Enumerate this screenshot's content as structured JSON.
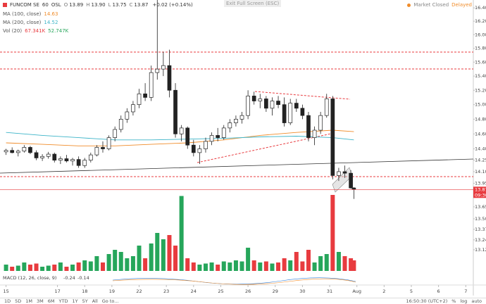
{
  "header": {
    "symbol": "FUNCOM SE",
    "interval": "60",
    "exchange": "OSL",
    "ohlc": [
      [
        "O",
        "13.89"
      ],
      [
        "H",
        "13.90"
      ],
      [
        "L",
        "13.75"
      ],
      [
        "C",
        "13.87"
      ]
    ],
    "change": "+0.02 (+0.14%)"
  },
  "status": {
    "exit": "Exit Full Screen (ESC)",
    "market": "Market Closed",
    "delayed": "Delayed"
  },
  "toolbar": {
    "ranges": [
      "1D",
      "5D",
      "1M",
      "3M",
      "6M",
      "YTD",
      "1Y",
      "5Y",
      "All"
    ],
    "goto": "Go to...",
    "clock": "16:50:30 (UTC+2)",
    "options": [
      "%",
      "log",
      "auto"
    ]
  },
  "chart_data": {
    "type": "candlestick",
    "log": true,
    "grid": false,
    "up_color": "#26a65b",
    "down_color": "#e83b3f",
    "x": [
      0,
      2,
      4,
      6,
      8,
      10,
      12,
      14,
      16,
      18,
      20,
      22,
      24,
      26,
      28,
      30,
      32,
      34,
      36,
      38,
      40,
      42,
      44,
      46,
      48,
      50,
      52,
      54,
      56,
      58,
      60,
      62,
      64,
      66,
      68,
      70,
      72,
      74,
      76,
      78,
      80,
      82,
      84,
      86,
      88,
      90,
      92,
      94,
      96,
      98,
      100,
      102,
      104,
      106,
      108,
      110,
      112,
      114,
      115
    ],
    "open": [
      14.36,
      14.38,
      14.35,
      14.37,
      14.42,
      14.35,
      14.28,
      14.3,
      14.33,
      14.25,
      14.27,
      14.24,
      14.26,
      14.18,
      14.25,
      14.32,
      14.42,
      14.4,
      14.55,
      14.66,
      14.8,
      14.9,
      15.0,
      15.15,
      15.1,
      15.45,
      15.5,
      15.55,
      15.2,
      14.6,
      14.68,
      14.45,
      14.35,
      14.4,
      14.5,
      14.58,
      14.55,
      14.68,
      14.75,
      14.8,
      14.85,
      15.12,
      15.05,
      15.08,
      14.95,
      15.05,
      15.0,
      14.75,
      15.02,
      14.95,
      14.85,
      14.55,
      14.65,
      14.85,
      15.08,
      14.05,
      14.1,
      14.08,
      13.89
    ],
    "high": [
      14.4,
      14.42,
      14.39,
      14.45,
      14.44,
      14.38,
      14.33,
      14.36,
      14.35,
      14.3,
      14.32,
      14.28,
      14.3,
      14.28,
      14.35,
      14.45,
      14.5,
      14.58,
      14.7,
      14.85,
      14.95,
      15.05,
      15.22,
      15.3,
      15.55,
      16.52,
      15.75,
      15.78,
      15.3,
      14.72,
      14.7,
      14.52,
      14.45,
      14.55,
      14.62,
      14.68,
      14.72,
      14.8,
      14.85,
      14.9,
      15.2,
      15.18,
      15.15,
      15.12,
      15.1,
      15.12,
      15.1,
      15.08,
      15.08,
      15.0,
      14.9,
      14.7,
      14.9,
      15.15,
      15.12,
      14.15,
      14.18,
      14.12,
      13.9
    ],
    "low": [
      14.32,
      14.34,
      14.3,
      14.35,
      14.33,
      14.25,
      14.24,
      14.27,
      14.22,
      14.2,
      14.22,
      14.18,
      14.15,
      14.15,
      14.22,
      14.3,
      14.35,
      14.38,
      14.5,
      14.62,
      14.75,
      14.85,
      14.95,
      15.05,
      15.05,
      15.35,
      15.4,
      15.1,
      14.55,
      14.5,
      14.4,
      14.3,
      14.2,
      14.35,
      14.45,
      14.5,
      14.52,
      14.62,
      14.7,
      14.74,
      14.8,
      15.0,
      14.95,
      14.9,
      14.85,
      14.95,
      14.7,
      14.72,
      14.9,
      14.8,
      14.5,
      14.45,
      14.6,
      14.82,
      14.0,
      13.98,
      14.02,
      13.88,
      13.75
    ],
    "close": [
      14.38,
      14.35,
      14.37,
      14.42,
      14.35,
      14.28,
      14.3,
      14.33,
      14.25,
      14.27,
      14.24,
      14.26,
      14.18,
      14.25,
      14.32,
      14.42,
      14.4,
      14.55,
      14.66,
      14.8,
      14.9,
      15.0,
      15.15,
      15.1,
      15.45,
      15.5,
      15.55,
      15.2,
      14.6,
      14.68,
      14.45,
      14.35,
      14.4,
      14.5,
      14.58,
      14.55,
      14.68,
      14.75,
      14.8,
      14.85,
      15.12,
      15.05,
      15.08,
      14.95,
      15.05,
      15.0,
      14.75,
      15.02,
      14.95,
      14.85,
      14.55,
      14.65,
      14.85,
      15.08,
      14.05,
      14.1,
      14.08,
      13.89,
      13.87
    ],
    "volume": [
      30000,
      20000,
      25000,
      40000,
      30000,
      35000,
      20000,
      25000,
      30000,
      40000,
      20000,
      30000,
      40000,
      50000,
      45000,
      70000,
      40000,
      80000,
      100000,
      90000,
      60000,
      70000,
      120000,
      60000,
      130000,
      180000,
      150000,
      170000,
      120000,
      355000,
      60000,
      40000,
      30000,
      35000,
      40000,
      30000,
      45000,
      40000,
      50000,
      45000,
      110000,
      50000,
      40000,
      45000,
      35000,
      40000,
      60000,
      50000,
      90000,
      45000,
      100000,
      40000,
      70000,
      80000,
      360000,
      90000,
      70000,
      60000,
      50000
    ],
    "volume_name": "Vol (20)",
    "volume_legend": [
      "67.341K",
      "52.747K"
    ],
    "y2lim": [
      0,
      400000
    ],
    "series": [
      {
        "name": "MA (100, close)",
        "color": "#f08c2a",
        "last": "14.63",
        "x": [
          0,
          12,
          24,
          36,
          48,
          60,
          72,
          84,
          96,
          108,
          115
        ],
        "values": [
          14.48,
          14.46,
          14.44,
          14.44,
          14.46,
          14.48,
          14.52,
          14.58,
          14.62,
          14.65,
          14.63
        ]
      },
      {
        "name": "MA (200, close)",
        "color": "#3cb4c8",
        "last": "14.52",
        "x": [
          0,
          12,
          24,
          36,
          48,
          60,
          72,
          84,
          96,
          108,
          115
        ],
        "values": [
          14.62,
          14.58,
          14.55,
          14.52,
          14.52,
          14.53,
          14.54,
          14.56,
          14.57,
          14.55,
          14.52
        ]
      }
    ],
    "last_price": {
      "value": 13.87,
      "label": "13.87",
      "time": "09:30",
      "color": "#e83b3f"
    },
    "macd": {
      "name": "MACD (12, 26, close, 9)",
      "values": [
        "-0.24",
        "-0.14"
      ],
      "colors": [
        "#2f7ed8",
        "#f08c2a"
      ]
    },
    "xlim": [
      -2,
      154.5
    ],
    "xticks": [
      {
        "value": 0,
        "label": "15"
      },
      {
        "value": 17,
        "label": "17"
      },
      {
        "value": 26,
        "label": "18"
      },
      {
        "value": 35,
        "label": "19"
      },
      {
        "value": 44,
        "label": "22"
      },
      {
        "value": 53,
        "label": "23"
      },
      {
        "value": 62,
        "label": "24"
      },
      {
        "value": 71,
        "label": "25"
      },
      {
        "value": 80,
        "label": "26"
      },
      {
        "value": 89,
        "label": "29"
      },
      {
        "value": 98,
        "label": "30"
      },
      {
        "value": 107,
        "label": "31"
      },
      {
        "value": 116,
        "label": "Aug"
      },
      {
        "value": 125,
        "label": "2"
      },
      {
        "value": 134,
        "label": "5"
      },
      {
        "value": 143,
        "label": "6"
      },
      {
        "value": 152,
        "label": "7"
      }
    ],
    "ylim": [
      12.95,
      16.52
    ],
    "yticks": [
      {
        "value": 16.4,
        "label": "16.40"
      },
      {
        "value": 16.2,
        "label": "16.20"
      },
      {
        "value": 16,
        "label": "16.00"
      },
      {
        "value": 15.8,
        "label": "15.80"
      },
      {
        "value": 15.6,
        "label": "15.60"
      },
      {
        "value": 15.4,
        "label": "15.40"
      },
      {
        "value": 15.2,
        "label": "15.20"
      },
      {
        "value": 15,
        "label": "15.00"
      },
      {
        "value": 14.8,
        "label": "14.80"
      },
      {
        "value": 14.6,
        "label": "14.60"
      },
      {
        "value": 14.4,
        "label": "14.40"
      },
      14.25,
      {
        "value": 14.1,
        "label": "14.10"
      },
      13.95,
      {
        "value": 13.8,
        "label": "13.80"
      },
      13.65,
      {
        "value": 13.5,
        "label": "13.50"
      },
      13.37,
      13.24,
      13.12
    ]
  }
}
